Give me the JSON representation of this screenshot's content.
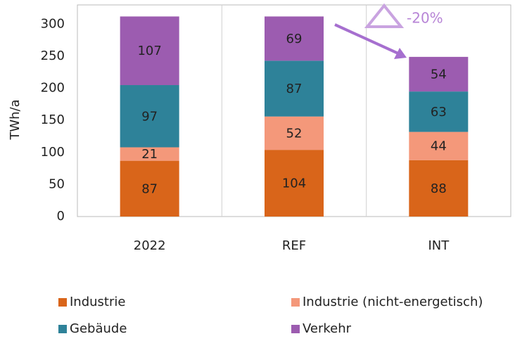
{
  "chart_data": {
    "type": "stacked_bar",
    "y_label": "TWh/a",
    "categories": [
      "2022",
      "REF",
      "INT"
    ],
    "series": [
      {
        "name": "Industrie",
        "color": "#d9651a",
        "values": [
          87,
          104,
          88
        ]
      },
      {
        "name": "Industrie (nicht-energetisch)",
        "color": "#f4987a",
        "values": [
          21,
          52,
          44
        ]
      },
      {
        "name": "Gebäude",
        "color": "#2e8299",
        "values": [
          97,
          87,
          63
        ]
      },
      {
        "name": "Verkehr",
        "color": "#9c5cb0",
        "values": [
          107,
          69,
          54
        ]
      }
    ],
    "ylim": [
      0,
      330
    ],
    "yticks": [
      0,
      50,
      100,
      150,
      200,
      250,
      300
    ],
    "annotation": "-20%",
    "legend": "bottom"
  }
}
